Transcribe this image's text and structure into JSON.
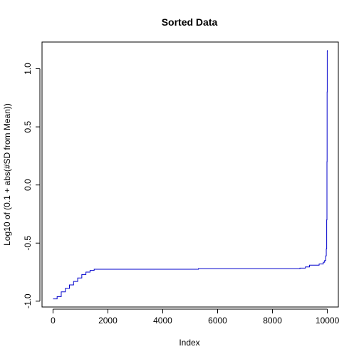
{
  "chart_data": {
    "type": "line",
    "title": "Sorted Data",
    "xlabel": "Index",
    "ylabel": "Log10 of (0.1 + abs(#SD from Mean))",
    "xlim": [
      -400,
      10400
    ],
    "ylim": [
      -1.05,
      1.23
    ],
    "x_ticks": [
      0,
      2000,
      4000,
      6000,
      8000,
      10000
    ],
    "x_tick_labels": [
      "0",
      "2000",
      "4000",
      "6000",
      "8000",
      "10000"
    ],
    "y_ticks": [
      -1.0,
      -0.5,
      0.0,
      0.5,
      1.0
    ],
    "y_tick_labels": [
      "-1.0",
      "-0.5",
      "0.0",
      "0.5",
      "1.0"
    ],
    "grid": false,
    "line_color": "#0000cc",
    "series": [
      {
        "step": true,
        "x": [
          1,
          150,
          300,
          450,
          600,
          750,
          900,
          1050,
          1200,
          1350,
          1500,
          5300,
          9000,
          9200,
          9350,
          9700,
          9850,
          9900,
          9940,
          9960,
          9975,
          9985,
          9990,
          9995,
          10000
        ],
        "y": [
          -0.98,
          -0.96,
          -0.92,
          -0.89,
          -0.86,
          -0.83,
          -0.8,
          -0.77,
          -0.75,
          -0.735,
          -0.725,
          -0.72,
          -0.715,
          -0.705,
          -0.69,
          -0.68,
          -0.665,
          -0.65,
          -0.61,
          -0.55,
          -0.3,
          0.2,
          0.8,
          1.15,
          1.16
        ]
      }
    ]
  }
}
